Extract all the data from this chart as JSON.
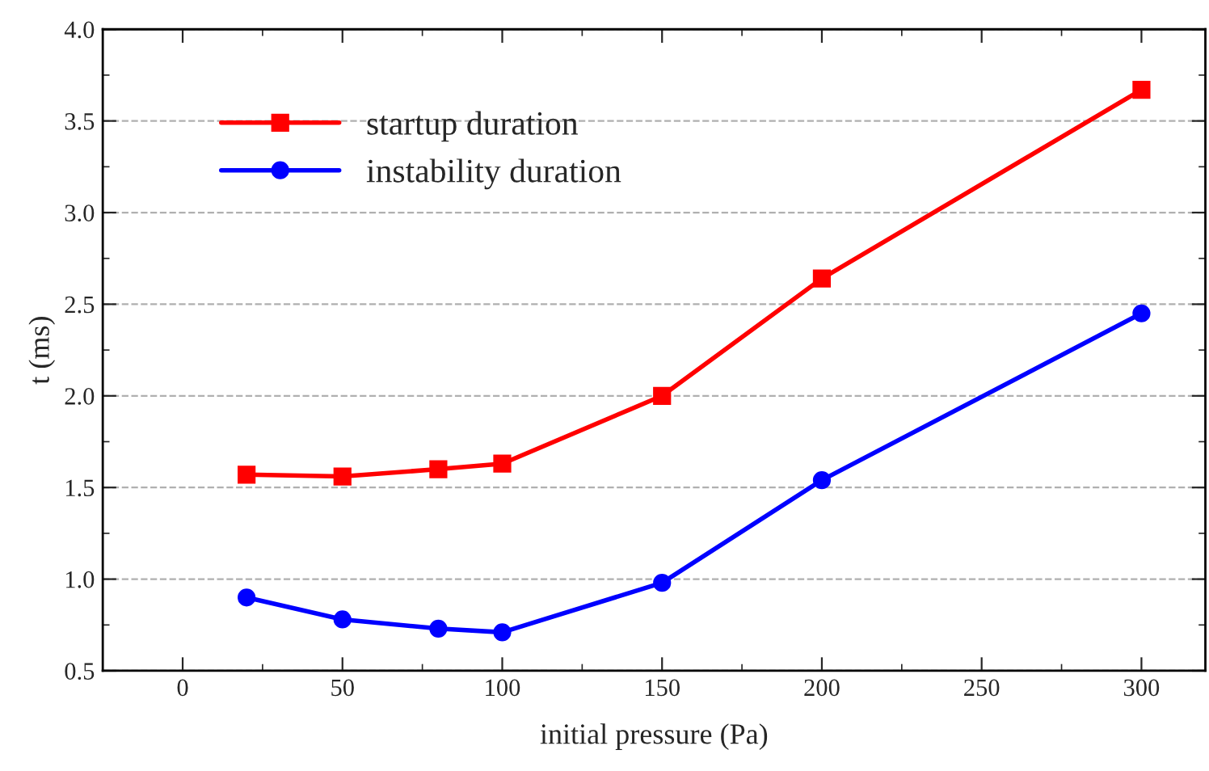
{
  "chart_data": {
    "type": "line",
    "xlabel": "initial pressure (Pa)",
    "ylabel": "t (ms)",
    "x": [
      20,
      50,
      80,
      100,
      150,
      200,
      300
    ],
    "series": [
      {
        "name": "startup duration",
        "color": "#ff0000",
        "marker": "square",
        "values": [
          1.57,
          1.56,
          1.6,
          1.63,
          2.0,
          2.64,
          3.67
        ]
      },
      {
        "name": "instability duration",
        "color": "#0000ff",
        "marker": "circle",
        "values": [
          0.9,
          0.78,
          0.73,
          0.71,
          0.98,
          1.54,
          2.45
        ]
      }
    ],
    "xlim": [
      -25,
      320
    ],
    "xticks": [
      0,
      50,
      100,
      150,
      200,
      250,
      300
    ],
    "ylim": [
      0.5,
      4.0
    ],
    "yticks": [
      {
        "value": 0.5,
        "label": "0.5"
      },
      {
        "value": 1,
        "label": "1.0"
      },
      {
        "value": 1.5,
        "label": "1.5"
      },
      {
        "value": 2,
        "label": "2.0"
      },
      {
        "value": 2.5,
        "label": "2.5"
      },
      {
        "value": 3,
        "label": "3.0"
      },
      {
        "value": 3.5,
        "label": "3.5"
      },
      {
        "value": 4,
        "label": "4.0"
      }
    ],
    "grid": "y",
    "legend": "top left",
    "line_style": "solid"
  }
}
